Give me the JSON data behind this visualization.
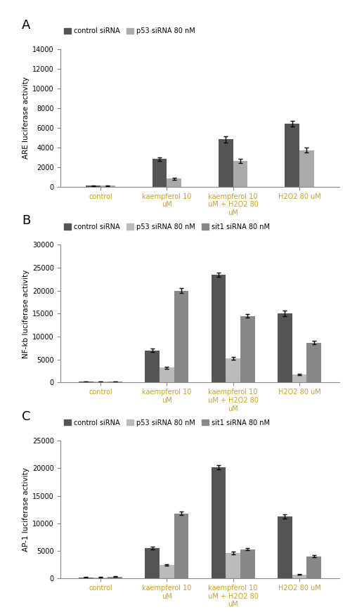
{
  "panel_A": {
    "label": "A",
    "ylabel": "ARE luciferase activity",
    "ylim": [
      0,
      14000
    ],
    "yticks": [
      0,
      2000,
      4000,
      6000,
      8000,
      10000,
      12000,
      14000
    ],
    "categories": [
      "control",
      "kaempferol 10\nuM",
      "kaempferol 10\nuM + H2O2 80\nuM",
      "H2O2 80 uM"
    ],
    "series": [
      {
        "name": "control siRNA",
        "color": "#555555",
        "values": [
          100,
          2800,
          4800,
          6400
        ],
        "errors": [
          50,
          200,
          300,
          300
        ]
      },
      {
        "name": "p53 siRNA 80 nM",
        "color": "#aaaaaa",
        "values": [
          100,
          800,
          2600,
          3700
        ],
        "errors": [
          30,
          100,
          200,
          250
        ]
      }
    ]
  },
  "panel_B": {
    "label": "B",
    "ylabel": "NF-kb luciferase activity",
    "ylim": [
      0,
      30000
    ],
    "yticks": [
      0,
      5000,
      10000,
      15000,
      20000,
      25000,
      30000
    ],
    "categories": [
      "control",
      "kaempferol 10\nuM",
      "kaempferol 10\nuM + H2O2 80\nuM",
      "H2O2 80 uM"
    ],
    "series": [
      {
        "name": "control siRNA",
        "color": "#555555",
        "values": [
          200,
          7000,
          23500,
          15000
        ],
        "errors": [
          50,
          400,
          500,
          600
        ]
      },
      {
        "name": "p53 siRNA 80 nM",
        "color": "#bbbbbb",
        "values": [
          200,
          3200,
          5200,
          1700
        ],
        "errors": [
          50,
          200,
          300,
          150
        ]
      },
      {
        "name": "sit1 siRNA 80 nM",
        "color": "#888888",
        "values": [
          200,
          20000,
          14500,
          8700
        ],
        "errors": [
          50,
          500,
          400,
          400
        ]
      }
    ]
  },
  "panel_C": {
    "label": "C",
    "ylabel": "AP-1 luciferase activity",
    "ylim": [
      0,
      25000
    ],
    "yticks": [
      0,
      5000,
      10000,
      15000,
      20000,
      25000
    ],
    "categories": [
      "control",
      "kaempferol 10\nuM",
      "kaempferol 10\nuM + H2O2 80\nuM",
      "H2O2 80 uM"
    ],
    "series": [
      {
        "name": "control siRNA",
        "color": "#555555",
        "values": [
          200,
          5500,
          20200,
          11200
        ],
        "errors": [
          50,
          300,
          400,
          400
        ]
      },
      {
        "name": "p53 siRNA 80 nM",
        "color": "#bbbbbb",
        "values": [
          200,
          2400,
          4600,
          700
        ],
        "errors": [
          50,
          150,
          200,
          100
        ]
      },
      {
        "name": "sit1 siRNA 80 nM",
        "color": "#888888",
        "values": [
          300,
          11800,
          5300,
          4000
        ],
        "errors": [
          80,
          350,
          200,
          200
        ]
      }
    ]
  },
  "tick_label_color": "#000000",
  "xtick_label_color": "#c8a020",
  "background_color": "#ffffff",
  "bar_width": 0.22
}
